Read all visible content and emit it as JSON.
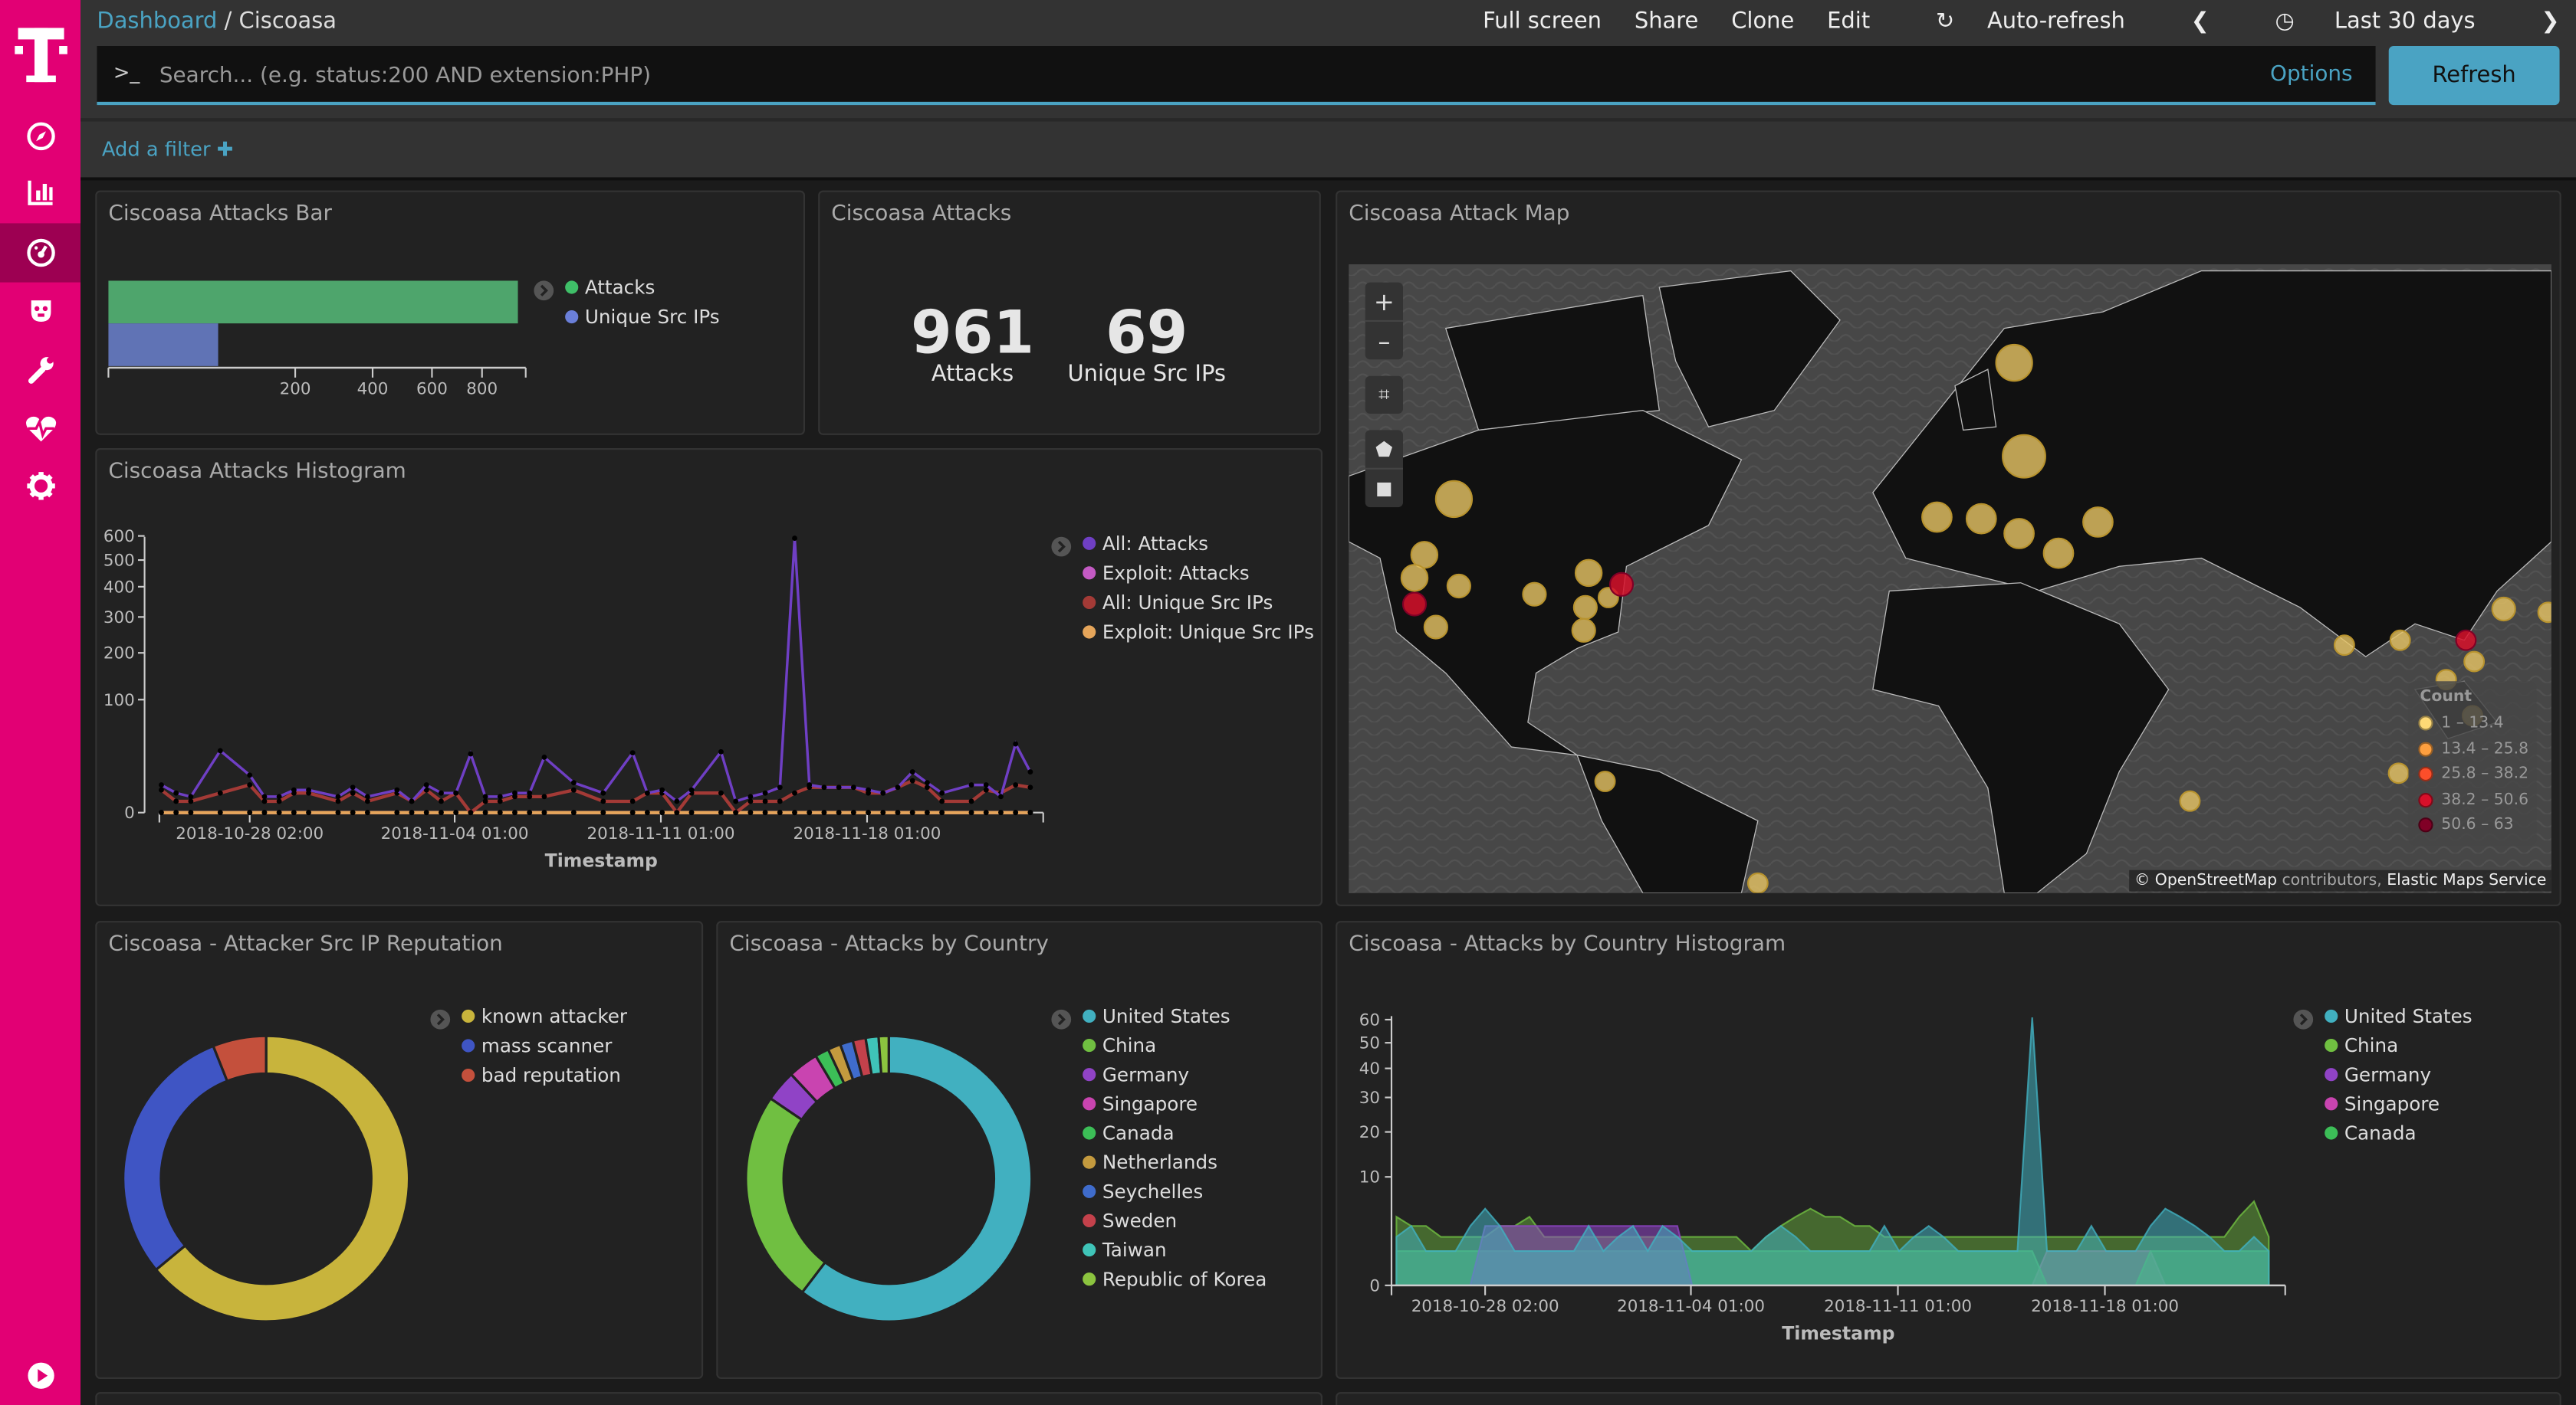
{
  "sidebar": {
    "logo": "T",
    "items": [
      {
        "icon": "compass-icon"
      },
      {
        "icon": "bar-chart-icon"
      },
      {
        "icon": "dashboard-icon",
        "active": true
      },
      {
        "icon": "timelion-icon"
      },
      {
        "icon": "wrench-icon"
      },
      {
        "icon": "heartbeat-icon"
      },
      {
        "icon": "gear-icon"
      }
    ],
    "bottom_icon": "play-icon"
  },
  "header": {
    "breadcrumb": [
      "Dashboard",
      "Ciscoasa"
    ],
    "menu": [
      "Full screen",
      "Share",
      "Clone",
      "Edit"
    ],
    "auto_refresh": "Auto-refresh",
    "time_range": "Last 30 days"
  },
  "search": {
    "prompt": ">_",
    "placeholder": "Search... (e.g. status:200 AND extension:PHP)",
    "value": "",
    "options": "Options",
    "refresh": "Refresh"
  },
  "filter": {
    "add": "Add a filter"
  },
  "colors": {
    "accent": "#4aa3c3",
    "brand": "#e20074"
  },
  "panels": {
    "bar": "Ciscoasa Attacks Bar",
    "metric": "Ciscoasa Attacks",
    "map": "Ciscoasa Attack Map",
    "histogram": "Ciscoasa Attacks Histogram",
    "reputation": "Ciscoasa - Attacker Src IP Reputation",
    "country": "Ciscoasa - Attacks by Country",
    "country_histogram": "Ciscoasa - Attacks by Country Histogram"
  },
  "metrics": [
    {
      "value": "961",
      "label": "Attacks"
    },
    {
      "value": "69",
      "label": "Unique Src IPs"
    }
  ],
  "map": {
    "legend_title": "Count",
    "legend": [
      {
        "range": "1 – 13.4",
        "color": "#fed976"
      },
      {
        "range": "13.4 – 25.8",
        "color": "#fd9f3f"
      },
      {
        "range": "25.8 – 38.2",
        "color": "#fc4e2a"
      },
      {
        "range": "38.2 – 50.6",
        "color": "#d7102a"
      },
      {
        "range": "50.6 – 63",
        "color": "#800026"
      }
    ],
    "attribution_osm": "© OpenStreetMap",
    "attribution_contrib": " contributors, ",
    "attribution_ems": "Elastic Maps Service",
    "controls": [
      "zoom-in",
      "zoom-out",
      "fit-bounds",
      "draw-polygon",
      "draw-rectangle"
    ]
  },
  "chart_data": [
    {
      "type": "bar",
      "orientation": "horizontal",
      "scale": "sqrt",
      "categories": [
        "Attacks",
        "Unique Src IPs"
      ],
      "values": [
        961,
        69
      ],
      "colors": [
        "#4ea56c",
        "#6073b5"
      ],
      "xticks": [
        200,
        400,
        600,
        800
      ],
      "legend": [
        "Attacks",
        "Unique Src IPs"
      ],
      "legend_colors": [
        "#3fbf68",
        "#6a7fd9"
      ],
      "legend_position": "right"
    },
    {
      "type": "line",
      "scale": "sqrt",
      "xlabel": "Timestamp",
      "ylim": [
        0,
        600
      ],
      "yticks": [
        0,
        100,
        200,
        300,
        400,
        500,
        600
      ],
      "xticks": [
        "2018-10-28 02:00",
        "2018-11-04 01:00",
        "2018-11-11 01:00",
        "2018-11-18 01:00"
      ],
      "legend_position": "right",
      "x": [
        "2018-10-25 02:00",
        "2018-10-25 14:00",
        "2018-10-26 02:00",
        "2018-10-26 14:00",
        "2018-10-27 02:00",
        "2018-10-27 14:00",
        "2018-10-28 02:00",
        "2018-10-28 14:00",
        "2018-10-29 02:00",
        "2018-10-29 14:00",
        "2018-10-30 02:00",
        "2018-10-30 14:00",
        "2018-10-31 02:00",
        "2018-10-31 14:00",
        "2018-11-01 02:00",
        "2018-11-01 14:00",
        "2018-11-02 02:00",
        "2018-11-02 14:00",
        "2018-11-03 02:00",
        "2018-11-03 14:00",
        "2018-11-04 02:00",
        "2018-11-04 14:00",
        "2018-11-05 02:00",
        "2018-11-05 14:00",
        "2018-11-06 02:00",
        "2018-11-06 14:00",
        "2018-11-07 02:00",
        "2018-11-07 14:00",
        "2018-11-08 02:00",
        "2018-11-08 14:00",
        "2018-11-09 02:00",
        "2018-11-09 14:00",
        "2018-11-10 02:00",
        "2018-11-10 14:00",
        "2018-11-11 02:00",
        "2018-11-11 14:00",
        "2018-11-12 02:00",
        "2018-11-12 14:00",
        "2018-11-13 02:00",
        "2018-11-13 14:00",
        "2018-11-14 02:00",
        "2018-11-14 14:00",
        "2018-11-15 02:00",
        "2018-11-15 14:00",
        "2018-11-16 02:00",
        "2018-11-16 14:00",
        "2018-11-17 02:00",
        "2018-11-17 14:00",
        "2018-11-18 02:00",
        "2018-11-18 14:00",
        "2018-11-19 02:00",
        "2018-11-19 14:00",
        "2018-11-20 02:00",
        "2018-11-20 14:00",
        "2018-11-21 02:00",
        "2018-11-21 14:00",
        "2018-11-22 02:00",
        "2018-11-22 14:00",
        "2018-11-23 02:00",
        "2018-11-23 14:00"
      ],
      "series": [
        {
          "name": "All: Attacks",
          "color": "#6f3fc4",
          "values": [
            6,
            3,
            2,
            null,
            30,
            null,
            11,
            2,
            2,
            4,
            4,
            null,
            2,
            5,
            2,
            null,
            4,
            1,
            6,
            3,
            3,
            27,
            2,
            2,
            3,
            3,
            24,
            null,
            7,
            null,
            3,
            null,
            28,
            3,
            4,
            1,
            4,
            null,
            29,
            1,
            2,
            3,
            5,
            590,
            6,
            5,
            5,
            5,
            4,
            3,
            5,
            13,
            7,
            3,
            null,
            6,
            6,
            2,
            37,
            13
          ]
        },
        {
          "name": "Exploit: Attacks",
          "color": "#c45ac4",
          "values": [
            0,
            0,
            0,
            null,
            0,
            null,
            0,
            0,
            0,
            0,
            0,
            null,
            0,
            0,
            0,
            null,
            0,
            0,
            0,
            0,
            0,
            0,
            0,
            0,
            0,
            0,
            0,
            null,
            0,
            null,
            0,
            null,
            0,
            0,
            0,
            0,
            0,
            null,
            0,
            0,
            0,
            0,
            0,
            0,
            0,
            0,
            0,
            0,
            0,
            0,
            0,
            0,
            0,
            0,
            null,
            0,
            0,
            0,
            0,
            0
          ]
        },
        {
          "name": "All: Unique Src IPs",
          "color": "#a33a36",
          "values": [
            4,
            1,
            1,
            null,
            3,
            null,
            6,
            1,
            1,
            3,
            3,
            null,
            1,
            3,
            1,
            null,
            3,
            1,
            4,
            1,
            3,
            0,
            1,
            1,
            2,
            2,
            2,
            null,
            4,
            null,
            1,
            null,
            1,
            3,
            3,
            0,
            3,
            null,
            3,
            0,
            1,
            1,
            1,
            3,
            5,
            5,
            5,
            5,
            3,
            3,
            5,
            8,
            5,
            1,
            null,
            1,
            4,
            3,
            6,
            5
          ]
        },
        {
          "name": "Exploit: Unique Src IPs",
          "color": "#e5a55a",
          "values": [
            0,
            0,
            0,
            null,
            0,
            null,
            0,
            0,
            0,
            0,
            0,
            null,
            0,
            0,
            0,
            null,
            0,
            0,
            0,
            0,
            0,
            0,
            0,
            0,
            0,
            0,
            0,
            null,
            0,
            null,
            0,
            null,
            0,
            0,
            0,
            0,
            0,
            null,
            0,
            0,
            0,
            0,
            0,
            0,
            0,
            0,
            0,
            0,
            0,
            0,
            0,
            0,
            0,
            0,
            null,
            0,
            0,
            0,
            0,
            0
          ]
        }
      ]
    },
    {
      "type": "pie",
      "donut": true,
      "legend_position": "right",
      "categories": [
        "known attacker",
        "mass scanner",
        "bad reputation"
      ],
      "values": [
        615,
        288,
        58
      ],
      "colors": [
        "#c8b43c",
        "#3f55c4",
        "#c4503c"
      ]
    },
    {
      "type": "pie",
      "donut": true,
      "legend_position": "right",
      "categories": [
        "United States",
        "China",
        "Germany",
        "Singapore",
        "Canada",
        "Netherlands",
        "Seychelles",
        "Sweden",
        "Taiwan",
        "Republic of Korea"
      ],
      "values": [
        580,
        232,
        34,
        33,
        15,
        14,
        14,
        14,
        14,
        11
      ],
      "colors": [
        "#41b0c0",
        "#70bf41",
        "#9043c6",
        "#c944b0",
        "#3cbe57",
        "#c49a3e",
        "#3f6ccc",
        "#c4414b",
        "#3fc4b8",
        "#8cc43f"
      ]
    },
    {
      "type": "area",
      "scale": "sqrt",
      "xlabel": "Timestamp",
      "ylim": [
        0,
        60
      ],
      "yticks": [
        0,
        10,
        20,
        30,
        40,
        50,
        60
      ],
      "xticks": [
        "2018-10-28 02:00",
        "2018-11-04 01:00",
        "2018-11-11 01:00",
        "2018-11-18 01:00"
      ],
      "legend_position": "right",
      "x": [
        "2018-10-25 02:00",
        "2018-10-25 14:00",
        "2018-10-26 02:00",
        "2018-10-26 14:00",
        "2018-10-27 02:00",
        "2018-10-27 14:00",
        "2018-10-28 02:00",
        "2018-10-28 14:00",
        "2018-10-29 02:00",
        "2018-10-29 14:00",
        "2018-10-30 02:00",
        "2018-10-30 14:00",
        "2018-10-31 02:00",
        "2018-10-31 14:00",
        "2018-11-01 02:00",
        "2018-11-01 14:00",
        "2018-11-02 02:00",
        "2018-11-02 14:00",
        "2018-11-03 02:00",
        "2018-11-03 14:00",
        "2018-11-04 02:00",
        "2018-11-04 14:00",
        "2018-11-05 02:00",
        "2018-11-05 14:00",
        "2018-11-06 02:00",
        "2018-11-06 14:00",
        "2018-11-07 02:00",
        "2018-11-07 14:00",
        "2018-11-08 02:00",
        "2018-11-08 14:00",
        "2018-11-09 02:00",
        "2018-11-09 14:00",
        "2018-11-10 02:00",
        "2018-11-10 14:00",
        "2018-11-11 02:00",
        "2018-11-11 14:00",
        "2018-11-12 02:00",
        "2018-11-12 14:00",
        "2018-11-13 02:00",
        "2018-11-13 14:00",
        "2018-11-14 02:00",
        "2018-11-14 14:00",
        "2018-11-15 02:00",
        "2018-11-15 14:00",
        "2018-11-16 02:00",
        "2018-11-16 14:00",
        "2018-11-17 02:00",
        "2018-11-17 14:00",
        "2018-11-18 02:00",
        "2018-11-18 14:00",
        "2018-11-19 02:00",
        "2018-11-19 14:00",
        "2018-11-20 02:00",
        "2018-11-20 14:00",
        "2018-11-21 02:00",
        "2018-11-21 14:00",
        "2018-11-22 02:00",
        "2018-11-22 14:00",
        "2018-11-23 02:00",
        "2018-11-23 14:00"
      ],
      "series": [
        {
          "name": "United States",
          "color": "#41b0c0",
          "values": [
            2,
            3,
            1,
            1,
            1,
            3,
            5,
            3,
            1,
            1,
            1,
            1,
            1,
            3,
            1,
            2,
            3,
            1,
            3,
            2,
            1,
            1,
            1,
            1,
            1,
            2,
            3,
            2,
            1,
            1,
            1,
            1,
            1,
            3,
            1,
            2,
            3,
            2,
            1,
            1,
            1,
            1,
            1,
            61,
            1,
            1,
            1,
            3,
            1,
            1,
            1,
            3,
            5,
            4,
            3,
            2,
            1,
            1,
            2,
            1
          ]
        },
        {
          "name": "China",
          "color": "#70bf41",
          "values": [
            4,
            3,
            3,
            2,
            2,
            2,
            2,
            3,
            3,
            4,
            2,
            2,
            2,
            2,
            2,
            2,
            2,
            2,
            2,
            2,
            2,
            2,
            2,
            2,
            1,
            2,
            3,
            4,
            5,
            4,
            4,
            3,
            3,
            2,
            2,
            2,
            2,
            2,
            2,
            2,
            2,
            2,
            2,
            2,
            2,
            2,
            2,
            2,
            2,
            2,
            2,
            2,
            2,
            2,
            2,
            2,
            2,
            4,
            6,
            2
          ]
        },
        {
          "name": "Germany",
          "color": "#9043c6",
          "values": [
            0,
            0,
            0,
            0,
            0,
            0,
            3,
            3,
            3,
            3,
            3,
            3,
            3,
            3,
            3,
            3,
            3,
            3,
            3,
            3,
            0,
            0,
            0,
            0,
            0,
            0,
            0,
            0,
            0,
            0,
            0,
            0,
            0,
            0,
            0,
            0,
            0,
            0,
            0,
            0,
            0,
            0,
            0,
            0,
            0,
            0,
            0,
            0,
            0,
            0,
            0,
            0,
            0,
            0,
            0,
            0,
            0,
            0,
            0,
            0
          ]
        },
        {
          "name": "Singapore",
          "color": "#c944b0",
          "values": [
            0,
            0,
            0,
            0,
            0,
            0,
            0,
            0,
            0,
            0,
            0,
            0,
            0,
            0,
            0,
            0,
            0,
            0,
            0,
            0,
            0,
            0,
            0,
            0,
            0,
            0,
            0,
            0,
            0,
            0,
            0,
            0,
            0,
            0,
            0,
            0,
            0,
            0,
            0,
            0,
            0,
            0,
            0,
            0,
            1,
            1,
            1,
            1,
            1,
            1,
            1,
            1,
            0,
            0,
            0,
            0,
            0,
            0,
            0,
            0
          ]
        },
        {
          "name": "Canada",
          "color": "#3cbe57",
          "values": [
            1,
            1,
            1,
            1,
            1,
            1,
            1,
            1,
            1,
            1,
            1,
            1,
            1,
            1,
            1,
            1,
            1,
            1,
            1,
            1,
            1,
            1,
            1,
            1,
            1,
            1,
            1,
            1,
            1,
            1,
            1,
            1,
            1,
            1,
            1,
            1,
            1,
            1,
            1,
            1,
            1,
            1,
            1,
            1,
            0,
            0,
            0,
            0,
            0,
            0,
            0,
            1,
            1,
            1,
            1,
            1,
            1,
            1,
            1,
            1
          ]
        }
      ]
    }
  ]
}
